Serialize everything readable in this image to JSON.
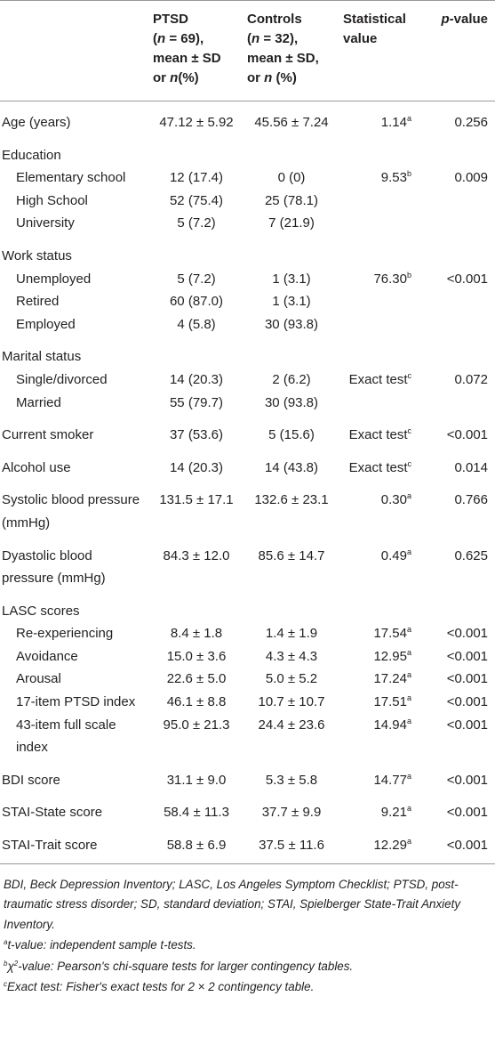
{
  "table": {
    "header": {
      "ptsd": [
        "PTSD",
        "(",
        "n",
        " = 69),",
        "mean ± SD",
        "or ",
        "n",
        "(%)"
      ],
      "controls": [
        "Controls",
        "(",
        "n",
        " = 32),",
        "mean ± SD,",
        "or ",
        "n",
        " (%)"
      ],
      "statistical": [
        "Statistical",
        "value"
      ],
      "p": [
        "p",
        "-value"
      ]
    },
    "sections": [
      {
        "label": "Age (years)",
        "ptsd": "47.12 ± 5.92",
        "controls": "45.56 ± 7.24",
        "stat": "1.14",
        "note": "a",
        "p": "0.256"
      },
      {
        "label": "Education",
        "rows": [
          {
            "label": "Elementary school",
            "ptsd": "12 (17.4)",
            "controls": "0 (0)",
            "stat": "9.53",
            "note": "b",
            "p": "0.009"
          },
          {
            "label": "High School",
            "ptsd": "52 (75.4)",
            "controls": "25 (78.1)"
          },
          {
            "label": "University",
            "ptsd": "5 (7.2)",
            "controls": "7 (21.9)"
          }
        ]
      },
      {
        "label": "Work status",
        "rows": [
          {
            "label": "Unemployed",
            "ptsd": "5 (7.2)",
            "controls": "1 (3.1)",
            "stat": "76.30",
            "note": "b",
            "p": "<0.001"
          },
          {
            "label": "Retired",
            "ptsd": "60 (87.0)",
            "controls": "1 (3.1)"
          },
          {
            "label": "Employed",
            "ptsd": "4 (5.8)",
            "controls": "30 (93.8)"
          }
        ]
      },
      {
        "label": "Marital status",
        "rows": [
          {
            "label": "Single/divorced",
            "ptsd": "14 (20.3)",
            "controls": "2 (6.2)",
            "stat": "Exact test",
            "note": "c",
            "p": "0.072"
          },
          {
            "label": "Married",
            "ptsd": "55 (79.7)",
            "controls": "30 (93.8)"
          }
        ]
      },
      {
        "label": "Current smoker",
        "ptsd": "37 (53.6)",
        "controls": "5 (15.6)",
        "stat": "Exact test",
        "note": "c",
        "p": "<0.001"
      },
      {
        "label": "Alcohol use",
        "ptsd": "14 (20.3)",
        "controls": "14 (43.8)",
        "stat": "Exact test",
        "note": "c",
        "p": "0.014"
      },
      {
        "label": "Systolic blood pressure (mmHg)",
        "ptsd": "131.5 ± 17.1",
        "controls": "132.6 ± 23.1",
        "stat": "0.30",
        "note": "a",
        "p": "0.766"
      },
      {
        "label": "Dyastolic blood pressure (mmHg)",
        "ptsd": "84.3 ± 12.0",
        "controls": "85.6 ± 14.7",
        "stat": "0.49",
        "note": "a",
        "p": "0.625"
      },
      {
        "label": "LASC scores",
        "rows": [
          {
            "label": "Re-experiencing",
            "ptsd": "8.4 ± 1.8",
            "controls": "1.4 ± 1.9",
            "stat": "17.54",
            "note": "a",
            "p": "<0.001"
          },
          {
            "label": "Avoidance",
            "ptsd": "15.0 ± 3.6",
            "controls": "4.3 ± 4.3",
            "stat": "12.95",
            "note": "a",
            "p": "<0.001"
          },
          {
            "label": "Arousal",
            "ptsd": "22.6 ± 5.0",
            "controls": "5.0 ± 5.2",
            "stat": "17.24",
            "note": "a",
            "p": "<0.001"
          },
          {
            "label": "17-item PTSD index",
            "ptsd": "46.1 ± 8.8",
            "controls": "10.7 ± 10.7",
            "stat": "17.51",
            "note": "a",
            "p": "<0.001"
          },
          {
            "label": "43-item full scale index",
            "ptsd": "95.0 ± 21.3",
            "controls": "24.4 ± 23.6",
            "stat": "14.94",
            "note": "a",
            "p": "<0.001"
          }
        ]
      },
      {
        "label": "BDI score",
        "ptsd": "31.1 ± 9.0",
        "controls": "5.3 ± 5.8",
        "stat": "14.77",
        "note": "a",
        "p": "<0.001"
      },
      {
        "label": "STAI-State score",
        "ptsd": "58.4 ± 11.3",
        "controls": "37.7 ± 9.9",
        "stat": "9.21",
        "note": "a",
        "p": "<0.001"
      },
      {
        "label": "STAI-Trait score",
        "ptsd": "58.8 ± 6.9",
        "controls": "37.5 ± 11.6",
        "stat": "12.29",
        "note": "a",
        "p": "<0.001"
      }
    ]
  },
  "footer": {
    "abbreviations": "BDI, Beck Depression Inventory; LASC, Los Angeles Symptom Checklist; PTSD, post-traumatic stress disorder; SD, standard deviation; STAI, Spielberger State-Trait Anxiety Inventory.",
    "notes": [
      {
        "mark": "a",
        "text": "t-value: independent sample t-tests."
      },
      {
        "mark": "b",
        "symbol": "χ",
        "power": "2",
        "text": "-value: Pearson's chi-square tests for larger contingency tables."
      },
      {
        "mark": "c",
        "text": "Exact test: Fisher's exact tests for 2 × 2 contingency table."
      }
    ]
  }
}
